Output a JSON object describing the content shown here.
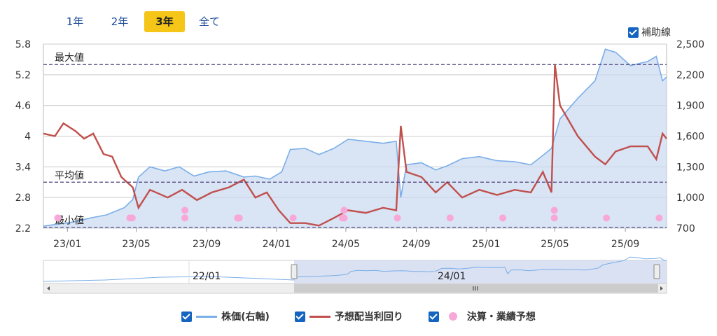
{
  "tabs": [
    {
      "label": "1年",
      "active": false
    },
    {
      "label": "2年",
      "active": false
    },
    {
      "label": "3年",
      "active": true
    },
    {
      "label": "全て",
      "active": false
    }
  ],
  "aux_line_label": "補助線",
  "legend": {
    "price": "株価(右軸)",
    "yield": "予想配当利回り",
    "earnings": "決算・業績予想"
  },
  "chart_data": {
    "type": "line",
    "left_axis": {
      "ticks": [
        "5.8",
        "5.2",
        "4.6",
        "4",
        "3.4",
        "2.8",
        "2.2"
      ],
      "range": [
        2.2,
        5.8
      ]
    },
    "right_axis": {
      "ticks": [
        "2,500",
        "2,200",
        "1,900",
        "1,600",
        "1,300",
        "1,000",
        "700"
      ],
      "range": [
        700,
        2500
      ]
    },
    "x_ticks": [
      "23/01",
      "23/05",
      "23/09",
      "24/01",
      "24/05",
      "24/09",
      "25/01",
      "25/05",
      "25/09"
    ],
    "reference_lines": [
      {
        "label": "最大値",
        "value": 5.4
      },
      {
        "label": "平均値",
        "value": 3.1
      },
      {
        "label": "最小値",
        "value": 2.22
      }
    ],
    "navigator_labels": [
      "22/01",
      "24/01"
    ],
    "series": [
      {
        "name": "株価(右軸)",
        "axis": "right",
        "color": "#7aaee8",
        "points": [
          [
            "2022-11-20",
            720
          ],
          [
            "2022-12-15",
            740
          ],
          [
            "2023-01-10",
            760
          ],
          [
            "2023-02-10",
            800
          ],
          [
            "2023-03-10",
            830
          ],
          [
            "2023-04-10",
            900
          ],
          [
            "2023-04-25",
            980
          ],
          [
            "2023-05-05",
            1200
          ],
          [
            "2023-05-25",
            1300
          ],
          [
            "2023-06-20",
            1260
          ],
          [
            "2023-07-15",
            1300
          ],
          [
            "2023-08-10",
            1210
          ],
          [
            "2023-09-05",
            1250
          ],
          [
            "2023-10-05",
            1260
          ],
          [
            "2023-11-05",
            1200
          ],
          [
            "2023-11-25",
            1210
          ],
          [
            "2023-12-20",
            1180
          ],
          [
            "2024-01-10",
            1250
          ],
          [
            "2024-01-25",
            1470
          ],
          [
            "2024-02-20",
            1480
          ],
          [
            "2024-03-15",
            1420
          ],
          [
            "2024-04-10",
            1480
          ],
          [
            "2024-05-05",
            1570
          ],
          [
            "2024-06-05",
            1550
          ],
          [
            "2024-07-05",
            1530
          ],
          [
            "2024-07-28",
            1550
          ],
          [
            "2024-08-05",
            1000
          ],
          [
            "2024-08-15",
            1320
          ],
          [
            "2024-09-10",
            1340
          ],
          [
            "2024-10-05",
            1270
          ],
          [
            "2024-10-25",
            1310
          ],
          [
            "2024-11-20",
            1380
          ],
          [
            "2024-12-20",
            1400
          ],
          [
            "2025-01-20",
            1360
          ],
          [
            "2025-02-20",
            1350
          ],
          [
            "2025-03-20",
            1320
          ],
          [
            "2025-04-05",
            1390
          ],
          [
            "2025-04-25",
            1480
          ],
          [
            "2025-05-10",
            1770
          ],
          [
            "2025-06-10",
            1970
          ],
          [
            "2025-07-10",
            2140
          ],
          [
            "2025-07-28",
            2450
          ],
          [
            "2025-08-15",
            2420
          ],
          [
            "2025-09-10",
            2290
          ],
          [
            "2025-10-10",
            2330
          ],
          [
            "2025-10-25",
            2380
          ],
          [
            "2025-11-05",
            2140
          ],
          [
            "2025-11-12",
            2180
          ]
        ]
      },
      {
        "name": "予想配当利回り",
        "axis": "left",
        "color": "#c0504d",
        "points": [
          [
            "2022-11-20",
            4.05
          ],
          [
            "2022-12-10",
            4.0
          ],
          [
            "2022-12-25",
            4.25
          ],
          [
            "2023-01-15",
            4.1
          ],
          [
            "2023-01-30",
            3.95
          ],
          [
            "2023-02-15",
            4.05
          ],
          [
            "2023-03-05",
            3.65
          ],
          [
            "2023-03-20",
            3.6
          ],
          [
            "2023-04-05",
            3.2
          ],
          [
            "2023-04-25",
            3.0
          ],
          [
            "2023-05-05",
            2.6
          ],
          [
            "2023-05-25",
            2.95
          ],
          [
            "2023-06-25",
            2.8
          ],
          [
            "2023-07-20",
            2.95
          ],
          [
            "2023-08-15",
            2.75
          ],
          [
            "2023-09-10",
            2.9
          ],
          [
            "2023-10-10",
            3.0
          ],
          [
            "2023-11-05",
            3.15
          ],
          [
            "2023-11-25",
            2.8
          ],
          [
            "2023-12-15",
            2.9
          ],
          [
            "2024-01-05",
            2.55
          ],
          [
            "2024-01-25",
            2.3
          ],
          [
            "2024-02-20",
            2.3
          ],
          [
            "2024-03-15",
            2.25
          ],
          [
            "2024-04-10",
            2.4
          ],
          [
            "2024-05-05",
            2.55
          ],
          [
            "2024-06-05",
            2.5
          ],
          [
            "2024-07-05",
            2.6
          ],
          [
            "2024-07-28",
            2.55
          ],
          [
            "2024-08-05",
            4.2
          ],
          [
            "2024-08-15",
            3.3
          ],
          [
            "2024-09-10",
            3.2
          ],
          [
            "2024-10-05",
            2.9
          ],
          [
            "2024-10-25",
            3.1
          ],
          [
            "2024-11-20",
            2.8
          ],
          [
            "2024-12-20",
            2.95
          ],
          [
            "2025-01-20",
            2.85
          ],
          [
            "2025-02-20",
            2.95
          ],
          [
            "2025-03-20",
            2.9
          ],
          [
            "2025-04-10",
            3.3
          ],
          [
            "2025-04-25",
            2.9
          ],
          [
            "2025-05-01",
            5.4
          ],
          [
            "2025-05-10",
            4.6
          ],
          [
            "2025-06-10",
            4.0
          ],
          [
            "2025-07-10",
            3.6
          ],
          [
            "2025-07-28",
            3.45
          ],
          [
            "2025-08-15",
            3.7
          ],
          [
            "2025-09-10",
            3.8
          ],
          [
            "2025-10-10",
            3.8
          ],
          [
            "2025-10-25",
            3.55
          ],
          [
            "2025-11-05",
            4.05
          ],
          [
            "2025-11-12",
            3.95
          ]
        ]
      },
      {
        "name": "決算・業績予想",
        "axis": "left",
        "color": "#f8a8d8",
        "points": [
          [
            "2022-12-15",
            2.4
          ],
          [
            "2023-04-20",
            2.4
          ],
          [
            "2023-04-24",
            2.4
          ],
          [
            "2023-07-25",
            2.4
          ],
          [
            "2023-07-25",
            2.55
          ],
          [
            "2023-10-25",
            2.4
          ],
          [
            "2023-10-28",
            2.4
          ],
          [
            "2024-01-30",
            2.4
          ],
          [
            "2024-04-25",
            2.4
          ],
          [
            "2024-04-28",
            2.4
          ],
          [
            "2024-04-28",
            2.55
          ],
          [
            "2024-07-30",
            2.4
          ],
          [
            "2024-10-30",
            2.4
          ],
          [
            "2025-01-30",
            2.4
          ],
          [
            "2025-04-30",
            2.4
          ],
          [
            "2025-04-30",
            2.55
          ],
          [
            "2025-07-30",
            2.4
          ],
          [
            "2025-10-30",
            2.4
          ]
        ]
      }
    ]
  }
}
